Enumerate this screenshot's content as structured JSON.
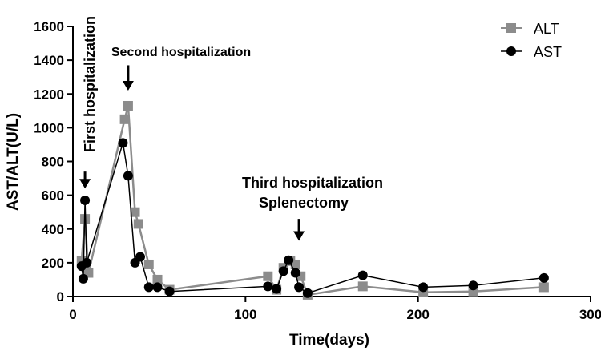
{
  "chart_data": {
    "type": "line",
    "xlabel": "Time(days)",
    "ylabel": "AST/ALT(U/L)",
    "xlim": [
      0,
      300
    ],
    "ylim": [
      0,
      1600
    ],
    "xticks": [
      0,
      100,
      200,
      300
    ],
    "yticks": [
      0,
      200,
      400,
      600,
      800,
      1000,
      1200,
      1400,
      1600
    ],
    "legend_position": "top-right",
    "grid": false,
    "series": [
      {
        "name": "ALT",
        "color": "#8c8c8c",
        "marker": "square",
        "x": [
          5,
          7,
          9,
          30,
          32,
          36,
          38,
          44,
          49,
          56,
          113,
          118,
          122,
          126,
          129,
          132,
          136,
          168,
          203,
          232,
          273
        ],
        "y": [
          210,
          460,
          140,
          1050,
          1130,
          500,
          430,
          190,
          100,
          40,
          120,
          40,
          170,
          210,
          190,
          120,
          10,
          60,
          25,
          30,
          55
        ]
      },
      {
        "name": "AST",
        "color": "#000000",
        "marker": "circle",
        "x": [
          5,
          6,
          7,
          8,
          29,
          32,
          36,
          39,
          44,
          49,
          56,
          113,
          118,
          122,
          125,
          129,
          131,
          136,
          168,
          203,
          232,
          273
        ],
        "y": [
          180,
          105,
          570,
          200,
          910,
          715,
          200,
          235,
          55,
          55,
          30,
          60,
          45,
          150,
          215,
          140,
          55,
          20,
          125,
          55,
          65,
          110
        ]
      }
    ],
    "annotations": [
      {
        "text": "First hospitalization",
        "x": 7,
        "arrow_from": 740,
        "arrow_to": 640,
        "orientation": "vertical"
      },
      {
        "text": "Second hospitalization",
        "x": 32,
        "arrow_from": 1370,
        "arrow_to": 1220
      },
      {
        "text": "Third  hospitalization",
        "x": 131
      },
      {
        "text": "Splenectomy",
        "x": 131,
        "arrow_from": 460,
        "arrow_to": 330
      }
    ]
  }
}
